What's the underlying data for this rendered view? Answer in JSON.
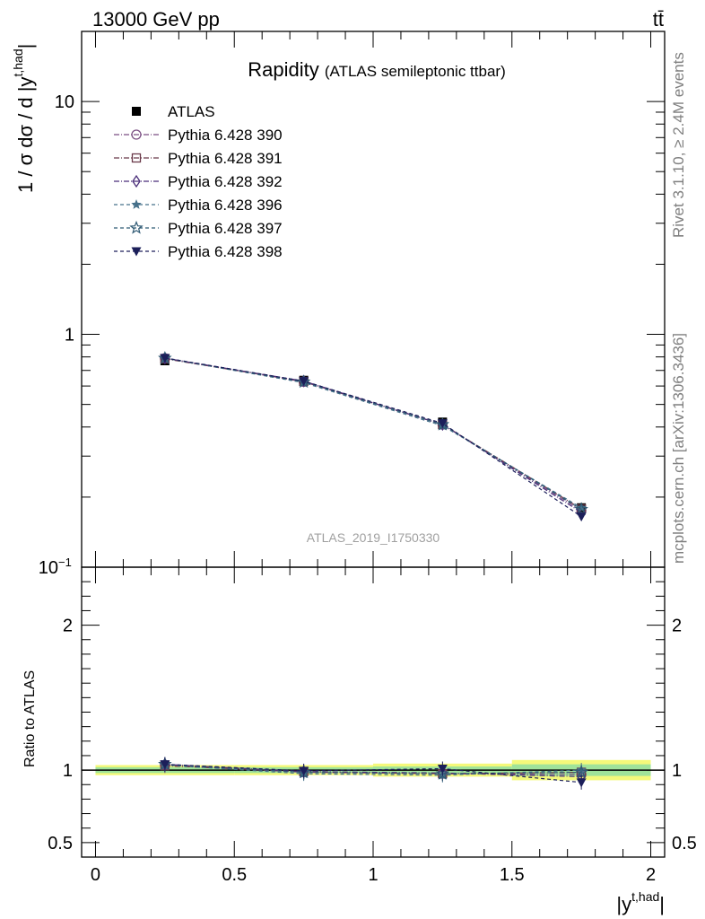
{
  "header": {
    "energy_label": "13000 GeV pp",
    "process_label": "tt̄"
  },
  "side_labels": {
    "rivet": "Rivet 3.1.10, ≥ 2.4M events",
    "source": "mcplots.cern.ch [arXiv:1306.3436]"
  },
  "chart_data": [
    {
      "type": "line",
      "title": "Rapidity",
      "subtitle": "(ATLAS semileptonic ttbar)",
      "ylabel": "1 / σ dσ / d |y^{t,had}|",
      "ylabel_parts": {
        "main": "1 / σ dσ / d |y",
        "sup": "t,had",
        "end": "|"
      },
      "yscale": "log",
      "ylim": [
        0.1,
        20
      ],
      "yticks": [
        {
          "v": 10,
          "label": "10"
        },
        {
          "v": 1,
          "label": "1"
        },
        {
          "v": 0.1,
          "label": "10",
          "sup": "−1"
        }
      ],
      "xlim": [
        -0.05,
        2.05
      ],
      "legend_position": "top-left",
      "watermark": "ATLAS_2019_I1750330",
      "x": [
        0.25,
        0.75,
        1.25,
        1.75
      ],
      "series": [
        {
          "name": "ATLAS",
          "color": "#000000",
          "marker": "square-filled",
          "values": [
            0.77,
            0.635,
            0.42,
            0.18
          ],
          "errors": [
            0.02,
            0.016,
            0.012,
            0.009
          ]
        },
        {
          "name": "Pythia 6.428 390",
          "color": "#7a4e82",
          "marker": "circle-open",
          "dash": "6,2,1,2",
          "values": [
            0.79,
            0.625,
            0.41,
            0.175
          ]
        },
        {
          "name": "Pythia 6.428 391",
          "color": "#6b3a4a",
          "marker": "square-open",
          "dash": "6,2,1,2",
          "values": [
            0.785,
            0.628,
            0.41,
            0.178
          ]
        },
        {
          "name": "Pythia 6.428 392",
          "color": "#4b2f7a",
          "marker": "diamond-open",
          "dash": "6,2,1,2",
          "values": [
            0.79,
            0.63,
            0.41,
            0.172
          ]
        },
        {
          "name": "Pythia 6.428 396",
          "color": "#46708a",
          "marker": "star-filled",
          "dash": "4,3",
          "values": [
            0.79,
            0.62,
            0.405,
            0.18
          ]
        },
        {
          "name": "Pythia 6.428 397",
          "color": "#2f5a74",
          "marker": "star-open",
          "dash": "4,3",
          "values": [
            0.79,
            0.625,
            0.41,
            0.177
          ]
        },
        {
          "name": "Pythia 6.428 398",
          "color": "#1c1f5a",
          "marker": "triangle-down-filled",
          "dash": "4,3",
          "values": [
            0.792,
            0.63,
            0.415,
            0.165
          ]
        }
      ]
    },
    {
      "type": "line",
      "ylabel": "Ratio to ATLAS",
      "xlabel": "|y^{t,had}|",
      "xlabel_parts": {
        "main": "|y",
        "sup": "t,had",
        "end": "|"
      },
      "ylim": [
        0.4,
        2.4
      ],
      "yticks": [
        {
          "v": 2,
          "label": "2"
        },
        {
          "v": 1,
          "label": "1"
        },
        {
          "v": 0.5,
          "label": "0.5"
        }
      ],
      "xlim": [
        -0.05,
        2.05
      ],
      "xticks": [
        {
          "v": 0,
          "label": "0"
        },
        {
          "v": 0.5,
          "label": "0.5"
        },
        {
          "v": 1,
          "label": "1"
        },
        {
          "v": 1.5,
          "label": "1.5"
        },
        {
          "v": 2,
          "label": "2"
        }
      ],
      "reference": 1,
      "bands": [
        {
          "x0": 0,
          "x1": 0.5,
          "outer": [
            0.965,
            1.035
          ],
          "inner": [
            0.98,
            1.02
          ]
        },
        {
          "x0": 0.5,
          "x1": 1.0,
          "outer": [
            0.965,
            1.035
          ],
          "inner": [
            0.98,
            1.02
          ]
        },
        {
          "x0": 1.0,
          "x1": 1.5,
          "outer": [
            0.955,
            1.045
          ],
          "inner": [
            0.975,
            1.025
          ]
        },
        {
          "x0": 1.5,
          "x1": 2.0,
          "outer": [
            0.93,
            1.07
          ],
          "inner": [
            0.96,
            1.04
          ]
        }
      ],
      "band_colors": {
        "outer": "#f4f97a",
        "inner": "#9fe39a"
      },
      "x": [
        0.25,
        0.75,
        1.25,
        1.75
      ],
      "series": [
        {
          "name": "Pythia 6.428 390",
          "color": "#7a4e82",
          "marker": "circle-open",
          "dash": "6,2,1,2",
          "values": [
            1.035,
            0.985,
            0.975,
            0.97
          ]
        },
        {
          "name": "Pythia 6.428 391",
          "color": "#6b3a4a",
          "marker": "square-open",
          "dash": "6,2,1,2",
          "values": [
            1.03,
            0.99,
            0.975,
            0.985
          ]
        },
        {
          "name": "Pythia 6.428 392",
          "color": "#4b2f7a",
          "marker": "diamond-open",
          "dash": "6,2,1,2",
          "values": [
            1.04,
            0.99,
            0.98,
            0.955
          ]
        },
        {
          "name": "Pythia 6.428 396",
          "color": "#46708a",
          "marker": "star-filled",
          "dash": "4,3",
          "values": [
            1.035,
            0.975,
            0.965,
            1.0
          ]
        },
        {
          "name": "Pythia 6.428 397",
          "color": "#2f5a74",
          "marker": "star-open",
          "dash": "4,3",
          "values": [
            1.04,
            0.985,
            0.975,
            0.985
          ]
        },
        {
          "name": "Pythia 6.428 398",
          "color": "#1c1f5a",
          "marker": "triangle-down-filled",
          "dash": "4,3",
          "values": [
            1.04,
            0.995,
            1.01,
            0.915
          ]
        }
      ]
    }
  ]
}
